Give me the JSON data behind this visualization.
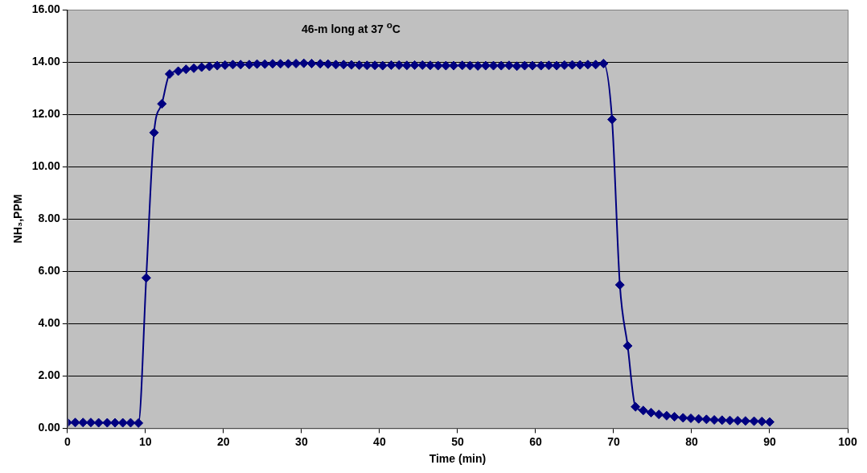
{
  "chart_data": {
    "type": "line",
    "xlabel": "Time (min)",
    "ylabel": "NH₃,PPM",
    "annotations": [
      "46-m long at 37 $^{o}$C"
    ],
    "xlim": [
      0,
      100
    ],
    "xticks": [
      0,
      10,
      20,
      30,
      40,
      50,
      60,
      70,
      80,
      90,
      100
    ],
    "ylim": [
      0,
      16
    ],
    "yticks": [
      {
        "value": 0,
        "label": "0.00"
      },
      {
        "value": 2,
        "label": "2.00"
      },
      {
        "value": 4,
        "label": "4.00"
      },
      {
        "value": 6,
        "label": "6.00"
      },
      {
        "value": 8,
        "label": "8.00"
      },
      {
        "value": 10,
        "label": "10.00"
      },
      {
        "value": 12,
        "label": "12.00"
      },
      {
        "value": 14,
        "label": "14.00"
      },
      {
        "value": 16,
        "label": "16.00"
      }
    ],
    "grid": "y",
    "marker": "diamond",
    "series": [
      {
        "color": "#000080",
        "x": [
          0,
          1.0,
          2.0,
          3.0,
          4.0,
          5.1,
          6.1,
          7.1,
          8.1,
          9.1,
          10.1,
          11.1,
          12.1,
          13.1,
          14.2,
          15.2,
          16.2,
          17.2,
          18.2,
          19.2,
          20.2,
          21.2,
          22.2,
          23.3,
          24.3,
          25.3,
          26.3,
          27.3,
          28.3,
          29.3,
          30.3,
          31.3,
          32.4,
          33.4,
          34.4,
          35.4,
          36.4,
          37.4,
          38.4,
          39.4,
          40.4,
          41.5,
          42.5,
          43.5,
          44.5,
          45.5,
          46.5,
          47.5,
          48.5,
          49.5,
          50.6,
          51.6,
          52.6,
          53.6,
          54.6,
          55.6,
          56.6,
          57.6,
          58.6,
          59.6,
          60.7,
          61.7,
          62.7,
          63.7,
          64.7,
          65.7,
          66.7,
          67.7,
          68.7,
          69.8,
          70.8,
          71.8,
          72.8,
          73.8,
          74.8,
          75.8,
          76.8,
          77.8,
          78.9,
          79.9,
          80.9,
          81.9,
          82.9,
          83.9,
          84.9,
          85.9,
          86.9,
          88.0,
          89.0,
          90.0
        ],
        "values": [
          0.22,
          0.22,
          0.22,
          0.22,
          0.21,
          0.21,
          0.21,
          0.21,
          0.21,
          0.2,
          5.75,
          11.3,
          12.4,
          13.54,
          13.65,
          13.72,
          13.76,
          13.8,
          13.83,
          13.86,
          13.88,
          13.9,
          13.9,
          13.9,
          13.92,
          13.92,
          13.93,
          13.93,
          13.93,
          13.94,
          13.95,
          13.94,
          13.93,
          13.92,
          13.9,
          13.9,
          13.89,
          13.88,
          13.87,
          13.87,
          13.86,
          13.88,
          13.88,
          13.87,
          13.88,
          13.88,
          13.87,
          13.86,
          13.86,
          13.86,
          13.87,
          13.86,
          13.85,
          13.86,
          13.86,
          13.86,
          13.87,
          13.84,
          13.86,
          13.86,
          13.86,
          13.87,
          13.86,
          13.88,
          13.89,
          13.89,
          13.9,
          13.9,
          13.94,
          11.8,
          5.48,
          3.15,
          0.82,
          0.68,
          0.6,
          0.53,
          0.48,
          0.44,
          0.4,
          0.38,
          0.36,
          0.34,
          0.32,
          0.31,
          0.3,
          0.29,
          0.28,
          0.27,
          0.26,
          0.24
        ]
      }
    ]
  }
}
